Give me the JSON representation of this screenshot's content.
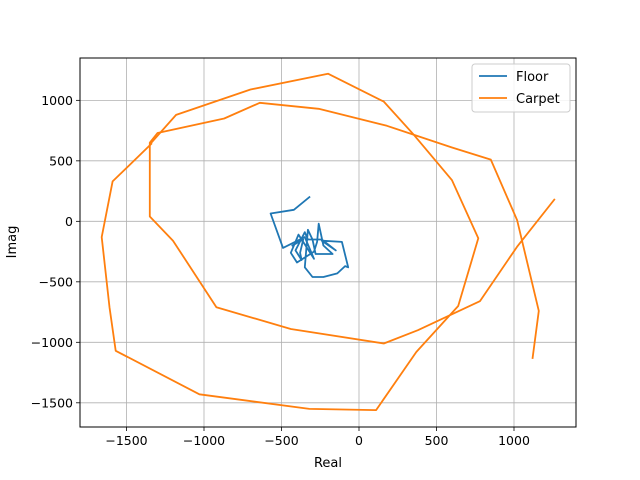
{
  "chart_data": {
    "type": "line",
    "title": "",
    "xlabel": "Real",
    "ylabel": "Imag",
    "xlim": [
      -1800,
      1400
    ],
    "ylim": [
      -1700,
      1350
    ],
    "xticks": [
      -1500,
      -1000,
      -500,
      0,
      500,
      1000
    ],
    "yticks": [
      -1500,
      -1000,
      -500,
      0,
      500,
      1000
    ],
    "xtick_labels": [
      "−1500",
      "−1000",
      "−500",
      "0",
      "500",
      "1000"
    ],
    "ytick_labels": [
      "−1500",
      "−1000",
      "−500",
      "0",
      "500",
      "1000"
    ],
    "grid": true,
    "legend_position": "top-right",
    "series": [
      {
        "name": "Floor",
        "color": "#1f77b4",
        "points": [
          [
            -320,
            200
          ],
          [
            -420,
            95
          ],
          [
            -570,
            65
          ],
          [
            -490,
            -220
          ],
          [
            -350,
            -130
          ],
          [
            -290,
            -310
          ],
          [
            -360,
            -170
          ],
          [
            -390,
            -110
          ],
          [
            -440,
            -260
          ],
          [
            -400,
            -340
          ],
          [
            -290,
            -250
          ],
          [
            -270,
            -170
          ],
          [
            -260,
            -20
          ],
          [
            -230,
            -200
          ],
          [
            -170,
            -270
          ],
          [
            -280,
            -270
          ],
          [
            -300,
            -150
          ],
          [
            -330,
            -70
          ],
          [
            -350,
            -380
          ],
          [
            -300,
            -460
          ],
          [
            -230,
            -460
          ],
          [
            -140,
            -430
          ],
          [
            -90,
            -370
          ],
          [
            -70,
            -380
          ],
          [
            -110,
            -170
          ],
          [
            -240,
            -160
          ],
          [
            -150,
            -240
          ],
          [
            -240,
            -150
          ],
          [
            -330,
            -150
          ],
          [
            -350,
            -90
          ],
          [
            -410,
            -240
          ],
          [
            -370,
            -320
          ],
          [
            -380,
            -260
          ],
          [
            -360,
            -150
          ],
          [
            -430,
            -200
          ]
        ]
      },
      {
        "name": "Carpet",
        "color": "#ff7f0e",
        "points": [
          [
            1260,
            180
          ],
          [
            1020,
            -210
          ],
          [
            780,
            -660
          ],
          [
            380,
            -900
          ],
          [
            160,
            -1010
          ],
          [
            -440,
            -890
          ],
          [
            -920,
            -710
          ],
          [
            -1200,
            -160
          ],
          [
            -1350,
            40
          ],
          [
            -1350,
            650
          ],
          [
            -1300,
            730
          ],
          [
            -870,
            850
          ],
          [
            -640,
            980
          ],
          [
            -260,
            930
          ],
          [
            180,
            790
          ],
          [
            600,
            610
          ],
          [
            850,
            510
          ],
          [
            1020,
            10
          ],
          [
            1160,
            -740
          ],
          [
            1120,
            -1130
          ]
        ]
      },
      {
        "name": "Carpet",
        "color": "#ff7f0e",
        "points": [
          [
            -1340,
            650
          ],
          [
            -1180,
            880
          ],
          [
            -700,
            1090
          ],
          [
            -200,
            1220
          ],
          [
            160,
            990
          ],
          [
            350,
            720
          ],
          [
            600,
            340
          ],
          [
            770,
            -140
          ],
          [
            640,
            -700
          ],
          [
            370,
            -1080
          ],
          [
            110,
            -1560
          ],
          [
            -320,
            -1550
          ],
          [
            -1030,
            -1430
          ],
          [
            -1570,
            -1070
          ],
          [
            -1610,
            -710
          ],
          [
            -1660,
            -130
          ],
          [
            -1590,
            330
          ],
          [
            -1340,
            640
          ]
        ]
      }
    ]
  }
}
